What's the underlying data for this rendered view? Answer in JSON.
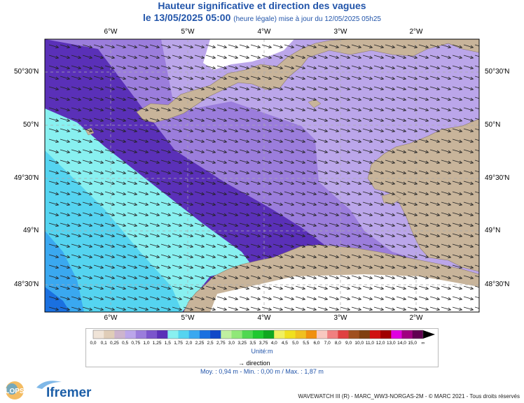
{
  "title": "Hauteur significative et direction des vagues",
  "subtitle_date": "le 13/05/2025 05:00",
  "subtitle_note": "(heure légale) mise à jour du 12/05/2025 05h25",
  "map": {
    "lon_labels": [
      "6°W",
      "5°W",
      "4°W",
      "3°W",
      "2°W"
    ],
    "lat_labels": [
      "50°30'N",
      "50°N",
      "49°30'N",
      "49°N",
      "48°30'N"
    ],
    "lon_range": [
      -6.9,
      -1.1
    ],
    "lat_range": [
      48.1,
      50.85
    ]
  },
  "legend": {
    "ticks": [
      "0,0",
      "0,1",
      "0,25",
      "0,5",
      "0,75",
      "1,0",
      "1,25",
      "1,5",
      "1,75",
      "2,0",
      "2,25",
      "2,5",
      "2,75",
      "3,0",
      "3,25",
      "3,5",
      "3,75",
      "4,0",
      "4,5",
      "5,0",
      "5,5",
      "6,0",
      "7,0",
      "8,0",
      "9,0",
      "10,0",
      "11,0",
      "12,0",
      "13,0",
      "14,0",
      "15,0",
      "∞"
    ],
    "colors": [
      "#f0e4d8",
      "#e0cdb8",
      "#cdb4cd",
      "#bba6ea",
      "#9b7ddc",
      "#7b55cc",
      "#5a30b8",
      "#88f0f0",
      "#55d4f0",
      "#3aa8f0",
      "#1a70e0",
      "#1048c8",
      "#c0f0a0",
      "#90e878",
      "#50d850",
      "#20c830",
      "#10a820",
      "#f0f060",
      "#f0e020",
      "#f0c020",
      "#f09010",
      "#f8c8c0",
      "#f08080",
      "#e04040",
      "#a05020",
      "#804010",
      "#d01010",
      "#a00000",
      "#e000e0",
      "#a00080",
      "#600050"
    ],
    "unit": "Unité:m",
    "direction_label": "direction"
  },
  "stats": "Moy. : 0,94 m   -   Min. : 0,00 m / Max. : 1,87 m",
  "footer": "WAVEWATCH III (R) - MARC_WW3-NORGAS-2M - © MARC 2021 - Tous droits réservés",
  "logos": [
    "LOPS",
    "Ifremer"
  ],
  "wave_direction_deg": 300,
  "colors": {
    "land": "#c8b49a",
    "title": "#2255aa"
  }
}
